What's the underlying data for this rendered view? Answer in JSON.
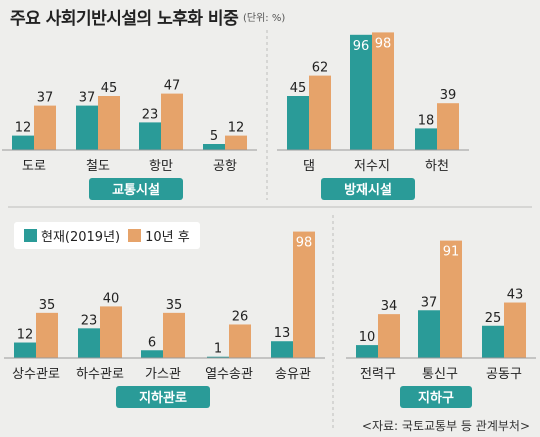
{
  "title": "주요 사회기반시설의 노후화 비중",
  "unit": "(단위: %)",
  "source": "<자료: 국토교통부 등 관계부처>",
  "legend": {
    "current": "현재(2019년)",
    "future": "10년 후"
  },
  "colors": {
    "current": "#2a9b98",
    "future": "#e6a36a",
    "highlight_label": "#ffffff",
    "group_label_bg": "#2a9b98",
    "background": "#eeeeec"
  },
  "chart_data": [
    {
      "type": "bar",
      "group_label": "교통시설",
      "categories": [
        "도로",
        "철도",
        "항만",
        "공항"
      ],
      "series": [
        {
          "name": "현재(2019년)",
          "values": [
            12,
            37,
            23,
            5
          ]
        },
        {
          "name": "10년 후",
          "values": [
            37,
            45,
            47,
            12
          ]
        }
      ]
    },
    {
      "type": "bar",
      "group_label": "방재시설",
      "categories": [
        "댐",
        "저수지",
        "하천"
      ],
      "series": [
        {
          "name": "현재(2019년)",
          "values": [
            45,
            96,
            18
          ]
        },
        {
          "name": "10년 후",
          "values": [
            62,
            98,
            39
          ]
        }
      ]
    },
    {
      "type": "bar",
      "group_label": "지하관로",
      "categories": [
        "상수관로",
        "하수관로",
        "가스관",
        "열수송관",
        "송유관"
      ],
      "series": [
        {
          "name": "현재(2019년)",
          "values": [
            12,
            23,
            6,
            1,
            13
          ]
        },
        {
          "name": "10년 후",
          "values": [
            35,
            40,
            35,
            26,
            98
          ]
        }
      ]
    },
    {
      "type": "bar",
      "group_label": "지하구",
      "categories": [
        "전력구",
        "통신구",
        "공동구"
      ],
      "series": [
        {
          "name": "현재(2019년)",
          "values": [
            10,
            37,
            25
          ]
        },
        {
          "name": "10년 후",
          "values": [
            34,
            91,
            43
          ]
        }
      ]
    }
  ]
}
